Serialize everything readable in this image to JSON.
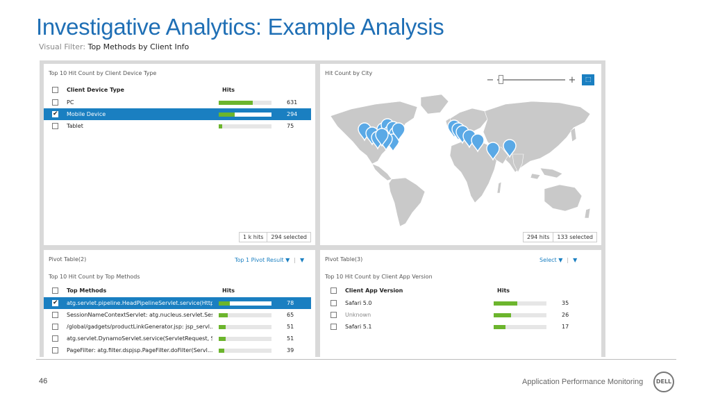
{
  "slide": {
    "title": "Investigative Analytics: Example Analysis",
    "subtitle_label": "Visual Filter:",
    "subtitle_value": "Top Methods by Client Info",
    "page_number": "46",
    "footer": "Application Performance Monitoring",
    "logo": "D€LL"
  },
  "device_panel": {
    "title": "Top 10 Hit Count by Client Device Type",
    "col_name": "Client Device Type",
    "col_hits": "Hits",
    "rows": [
      {
        "name": "PC",
        "hits": "631",
        "fraction": 0.64,
        "selected": false
      },
      {
        "name": "Mobile Device",
        "hits": "294",
        "fraction": 0.3,
        "selected": true
      },
      {
        "name": "Tablet",
        "hits": "75",
        "fraction": 0.07,
        "selected": false
      }
    ],
    "footer_hits": "1 k hits",
    "footer_selected": "294 selected"
  },
  "city_panel": {
    "title": "Hit Count by City",
    "zoom_minus": "−",
    "zoom_plus": "+",
    "select_icon": "⬚",
    "footer_hits": "294 hits",
    "footer_selected": "133 selected"
  },
  "methods_panel": {
    "title": "Pivot Table(2)",
    "control": "Top 1 Pivot Result ▼",
    "control_sep": "|",
    "menu_icon": "▼",
    "subtitle": "Top 10 Hit Count by Top Methods",
    "col_name": "Top Methods",
    "col_hits": "Hits",
    "rows": [
      {
        "name": "atg.servlet.pipeline.HeadPipelineServlet.service(Http...",
        "hits": "78",
        "fraction": 0.21,
        "selected": true
      },
      {
        "name": "SessionNameContextServlet: atg.nucleus.servlet.Sessi...",
        "hits": "65",
        "fraction": 0.17,
        "selected": false
      },
      {
        "name": "/global/gadgets/productLinkGenerator.jsp: jsp_servl...",
        "hits": "51",
        "fraction": 0.13,
        "selected": false
      },
      {
        "name": "atg.servlet.DynamoServlet.service(ServletRequest, Se...",
        "hits": "51",
        "fraction": 0.13,
        "selected": false
      },
      {
        "name": "PageFilter: atg.filter.dspjsp.PageFilter.doFilter(Servl...",
        "hits": "39",
        "fraction": 0.1,
        "selected": false
      }
    ]
  },
  "app_panel": {
    "title": "Pivot Table(3)",
    "control": "Select ▼",
    "control_sep": "|",
    "menu_icon": "▼",
    "subtitle": "Top 10 Hit Count by Client App Version",
    "col_name": "Client App Version",
    "col_hits": "Hits",
    "rows": [
      {
        "name": "Safari 5.0",
        "hits": "35",
        "fraction": 0.45,
        "dim": false
      },
      {
        "name": "Unknown",
        "hits": "26",
        "fraction": 0.33,
        "dim": true
      },
      {
        "name": "Safari 5.1",
        "hits": "17",
        "fraction": 0.22,
        "dim": false
      }
    ]
  },
  "colors": {
    "title_blue": "#1f6fb5",
    "selection_blue": "#1a7fc1",
    "bar_green": "#6cb52d",
    "marker_blue": "#5aa9e6",
    "land_gray": "#c9c9c9"
  }
}
